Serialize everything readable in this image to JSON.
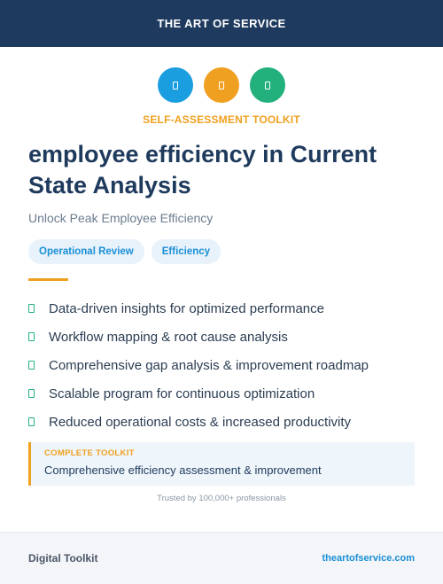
{
  "header": {
    "title": "THE ART OF SERVICE"
  },
  "icons": [
    {
      "name": "icon-blue",
      "color": "#1a9ee0"
    },
    {
      "name": "icon-orange",
      "color": "#f0a020"
    },
    {
      "name": "icon-green",
      "color": "#22b07d"
    }
  ],
  "kicker": "SELF-ASSESSMENT TOOLKIT",
  "title": "employee efficiency in Current State Analysis",
  "subtitle": "Unlock Peak Employee Efficiency",
  "tags": [
    "Operational Review",
    "Efficiency"
  ],
  "features": [
    "Data-driven insights for optimized performance",
    "Workflow mapping & root cause analysis",
    "Comprehensive gap analysis & improvement roadmap",
    "Scalable program for continuous optimization",
    "Reduced operational costs & increased productivity"
  ],
  "callout": {
    "label": "COMPLETE TOOLKIT",
    "text": "Comprehensive efficiency assessment & improvement"
  },
  "trusted": "Trusted by 100,000+ professionals",
  "footer": {
    "left": "Digital Toolkit",
    "right": "theartofservice.com"
  },
  "colors": {
    "header_bg": "#1e3a5f",
    "accent": "#f0a020",
    "check": "#22b07d",
    "link": "#1a8fd6"
  }
}
